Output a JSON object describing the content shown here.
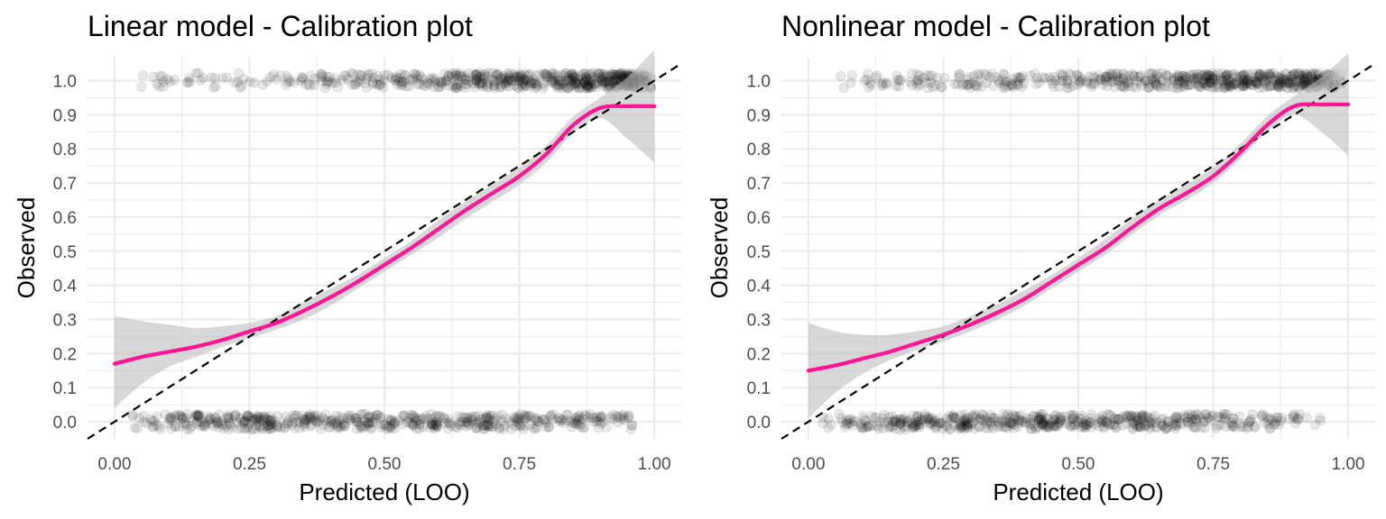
{
  "chart_data": [
    {
      "type": "scatter",
      "title": "Linear model - Calibration plot",
      "xlabel": "Predicted (LOO)",
      "ylabel": "Observed",
      "xlim": [
        -0.05,
        1.05
      ],
      "ylim": [
        -0.05,
        1.07
      ],
      "xticks": [
        0,
        0.25,
        0.5,
        0.75,
        1
      ],
      "xtick_labels": [
        "0.00",
        "0.25",
        "0.50",
        "0.75",
        "1.00"
      ],
      "yticks": [
        0,
        0.1,
        0.2,
        0.3,
        0.4,
        0.5,
        0.6,
        0.7,
        0.8,
        0.9,
        1
      ],
      "ytick_labels": [
        "0.0",
        "0.1",
        "0.2",
        "0.3",
        "0.4",
        "0.5",
        "0.6",
        "0.7",
        "0.8",
        "0.9",
        "1.0"
      ],
      "grid": true,
      "points_y1": {
        "x_range": [
          0.05,
          0.995
        ],
        "density_x": [
          0.0,
          0.2,
          0.4,
          0.6,
          0.8,
          0.95,
          1.0
        ],
        "density_w": [
          0.3,
          0.6,
          1.0,
          1.8,
          3.2,
          4.5,
          2.0
        ]
      },
      "points_y0": {
        "x_range": [
          0.03,
          0.96
        ],
        "density_x": [
          0.0,
          0.15,
          0.3,
          0.5,
          0.7,
          0.85,
          1.0
        ],
        "density_w": [
          0.6,
          1.2,
          1.5,
          1.4,
          1.3,
          1.0,
          0.4
        ]
      },
      "reference_line": {
        "x": [
          -0.05,
          1.05
        ],
        "y": [
          -0.05,
          1.05
        ],
        "style": "dashed",
        "color": "#000000"
      },
      "smooth": {
        "color": "#ff1493",
        "band_color": "#bebebe",
        "x": [
          0.0,
          0.05,
          0.1,
          0.15,
          0.2,
          0.25,
          0.3,
          0.35,
          0.4,
          0.45,
          0.5,
          0.55,
          0.6,
          0.65,
          0.7,
          0.75,
          0.8,
          0.85,
          0.9,
          0.95,
          1.0
        ],
        "y": [
          0.17,
          0.19,
          0.205,
          0.22,
          0.24,
          0.265,
          0.29,
          0.325,
          0.365,
          0.41,
          0.46,
          0.51,
          0.565,
          0.62,
          0.67,
          0.72,
          0.785,
          0.87,
          0.92,
          0.925,
          0.925
        ],
        "lo": [
          0.04,
          0.11,
          0.16,
          0.19,
          0.22,
          0.245,
          0.27,
          0.3,
          0.34,
          0.39,
          0.44,
          0.49,
          0.54,
          0.595,
          0.645,
          0.695,
          0.76,
          0.845,
          0.89,
          0.83,
          0.76
        ],
        "hi": [
          0.31,
          0.295,
          0.285,
          0.275,
          0.28,
          0.29,
          0.31,
          0.35,
          0.39,
          0.43,
          0.48,
          0.53,
          0.59,
          0.645,
          0.695,
          0.745,
          0.81,
          0.895,
          0.95,
          1.01,
          1.09
        ]
      }
    },
    {
      "type": "scatter",
      "title": "Nonlinear model - Calibration plot",
      "xlabel": "Predicted (LOO)",
      "ylabel": "Observed",
      "xlim": [
        -0.05,
        1.05
      ],
      "ylim": [
        -0.05,
        1.07
      ],
      "xticks": [
        0,
        0.25,
        0.5,
        0.75,
        1
      ],
      "xtick_labels": [
        "0.00",
        "0.25",
        "0.50",
        "0.75",
        "1.00"
      ],
      "yticks": [
        0,
        0.1,
        0.2,
        0.3,
        0.4,
        0.5,
        0.6,
        0.7,
        0.8,
        0.9,
        1
      ],
      "ytick_labels": [
        "0.0",
        "0.1",
        "0.2",
        "0.3",
        "0.4",
        "0.5",
        "0.6",
        "0.7",
        "0.8",
        "0.9",
        "1.0"
      ],
      "grid": true,
      "points_y1": {
        "x_range": [
          0.03,
          0.99
        ],
        "density_x": [
          0.0,
          0.2,
          0.4,
          0.6,
          0.8,
          0.95,
          1.0
        ],
        "density_w": [
          0.3,
          0.7,
          1.1,
          1.9,
          3.2,
          4.0,
          1.8
        ]
      },
      "points_y0": {
        "x_range": [
          0.02,
          0.96
        ],
        "density_x": [
          0.0,
          0.15,
          0.3,
          0.5,
          0.7,
          0.85,
          1.0
        ],
        "density_w": [
          0.4,
          1.3,
          1.7,
          1.5,
          1.3,
          0.9,
          0.3
        ]
      },
      "reference_line": {
        "x": [
          -0.05,
          1.05
        ],
        "y": [
          -0.05,
          1.05
        ],
        "style": "dashed",
        "color": "#000000"
      },
      "smooth": {
        "color": "#ff1493",
        "band_color": "#bebebe",
        "x": [
          0.0,
          0.05,
          0.1,
          0.15,
          0.2,
          0.25,
          0.3,
          0.35,
          0.4,
          0.45,
          0.5,
          0.55,
          0.6,
          0.65,
          0.7,
          0.75,
          0.8,
          0.85,
          0.9,
          0.95,
          1.0
        ],
        "y": [
          0.15,
          0.165,
          0.185,
          0.205,
          0.23,
          0.255,
          0.285,
          0.32,
          0.36,
          0.41,
          0.46,
          0.51,
          0.57,
          0.625,
          0.67,
          0.72,
          0.79,
          0.87,
          0.925,
          0.93,
          0.93
        ],
        "lo": [
          0.01,
          0.085,
          0.14,
          0.18,
          0.21,
          0.235,
          0.265,
          0.3,
          0.34,
          0.39,
          0.44,
          0.49,
          0.55,
          0.605,
          0.65,
          0.7,
          0.77,
          0.85,
          0.9,
          0.85,
          0.78
        ],
        "hi": [
          0.29,
          0.265,
          0.255,
          0.255,
          0.265,
          0.28,
          0.31,
          0.345,
          0.385,
          0.43,
          0.48,
          0.535,
          0.595,
          0.65,
          0.695,
          0.745,
          0.815,
          0.895,
          0.955,
          1.01,
          1.08
        ]
      }
    }
  ]
}
